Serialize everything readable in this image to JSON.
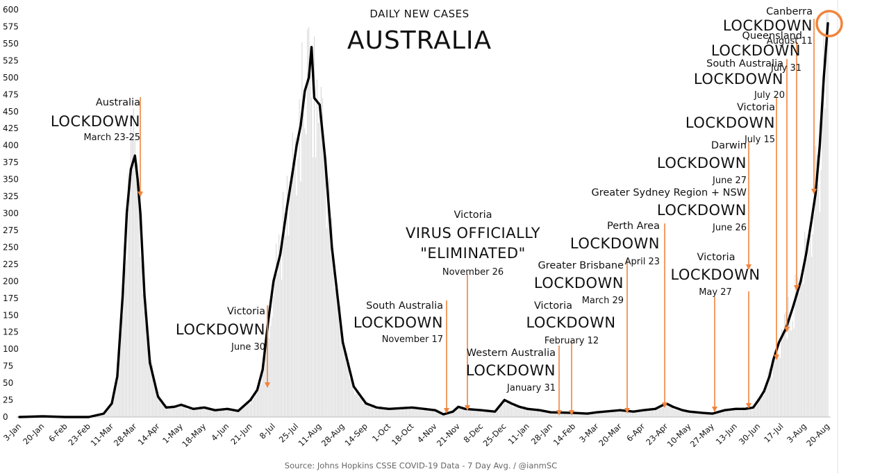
{
  "chart_data": {
    "type": "line",
    "title": "AUSTRALIA",
    "subtitle": "DAILY NEW CASES",
    "source": "Source: Johns Hopkins CSSE COVID-19 Data - 7 Day Avg. / @ianmSC",
    "ylim": [
      0,
      600
    ],
    "yticks": [
      0,
      25,
      50,
      75,
      100,
      125,
      150,
      175,
      200,
      225,
      250,
      275,
      300,
      325,
      350,
      375,
      400,
      425,
      450,
      475,
      500,
      525,
      550,
      575,
      600
    ],
    "x_start": "2020-01-03",
    "xticks": [
      "3-Jan",
      "20-Jan",
      "6-Feb",
      "23-Feb",
      "11-Mar",
      "28-Mar",
      "14-Apr",
      "1-May",
      "18-May",
      "4-Jun",
      "21-Jun",
      "8-Jul",
      "25-Jul",
      "11-Aug",
      "28-Aug",
      "14-Sep",
      "1-Oct",
      "18-Oct",
      "4-Nov",
      "21-Nov",
      "8-Dec",
      "25-Dec",
      "11-Jan",
      "28-Jan",
      "14-Feb",
      "3-Mar",
      "20-Mar",
      "6-Apr",
      "23-Apr",
      "10-May",
      "27-May",
      "13-Jun",
      "30-Jun",
      "17-Jul",
      "3-Aug",
      "20-Aug"
    ],
    "grid": false,
    "series": [
      {
        "name": "",
        "color": "#000000",
        "x": [
          "2020-01-03",
          "2020-01-20",
          "2020-02-06",
          "2020-02-23",
          "2020-03-05",
          "2020-03-11",
          "2020-03-15",
          "2020-03-19",
          "2020-03-22",
          "2020-03-25",
          "2020-03-28",
          "2020-03-30",
          "2020-04-01",
          "2020-04-04",
          "2020-04-08",
          "2020-04-14",
          "2020-04-20",
          "2020-04-26",
          "2020-05-01",
          "2020-05-10",
          "2020-05-18",
          "2020-05-26",
          "2020-06-04",
          "2020-06-12",
          "2020-06-21",
          "2020-06-26",
          "2020-06-30",
          "2020-07-04",
          "2020-07-08",
          "2020-07-13",
          "2020-07-18",
          "2020-07-22",
          "2020-07-25",
          "2020-07-28",
          "2020-07-31",
          "2020-08-03",
          "2020-08-05",
          "2020-08-07",
          "2020-08-11",
          "2020-08-15",
          "2020-08-20",
          "2020-08-28",
          "2020-09-05",
          "2020-09-14",
          "2020-09-22",
          "2020-10-01",
          "2020-10-18",
          "2020-11-04",
          "2020-11-10",
          "2020-11-17",
          "2020-11-21",
          "2020-11-26",
          "2020-12-08",
          "2020-12-18",
          "2020-12-25",
          "2020-12-30",
          "2021-01-05",
          "2021-01-11",
          "2021-01-20",
          "2021-01-28",
          "2021-02-14",
          "2021-02-24",
          "2021-03-03",
          "2021-03-20",
          "2021-03-30",
          "2021-04-06",
          "2021-04-15",
          "2021-04-23",
          "2021-04-28",
          "2021-05-05",
          "2021-05-10",
          "2021-05-20",
          "2021-05-27",
          "2021-06-05",
          "2021-06-13",
          "2021-06-20",
          "2021-06-26",
          "2021-06-30",
          "2021-07-04",
          "2021-07-08",
          "2021-07-11",
          "2021-07-15",
          "2021-07-20",
          "2021-07-25",
          "2021-07-31",
          "2021-08-04",
          "2021-08-08",
          "2021-08-11",
          "2021-08-14",
          "2021-08-17",
          "2021-08-20"
        ],
        "values": [
          0,
          1,
          0,
          0,
          5,
          20,
          60,
          180,
          300,
          365,
          385,
          350,
          300,
          180,
          80,
          30,
          14,
          15,
          18,
          12,
          14,
          10,
          12,
          9,
          25,
          40,
          70,
          140,
          200,
          240,
          310,
          360,
          400,
          430,
          480,
          500,
          545,
          470,
          460,
          380,
          250,
          110,
          45,
          20,
          14,
          12,
          14,
          10,
          4,
          8,
          15,
          12,
          10,
          8,
          25,
          20,
          15,
          12,
          10,
          7,
          6,
          5,
          7,
          10,
          8,
          10,
          12,
          20,
          15,
          10,
          8,
          6,
          5,
          10,
          12,
          12,
          14,
          25,
          38,
          60,
          85,
          110,
          130,
          160,
          200,
          240,
          290,
          330,
          400,
          500,
          580
        ]
      }
    ],
    "annotations": [
      {
        "place": "Australia",
        "event": "LOCKDOWN",
        "date": "March 23-25"
      },
      {
        "place": "Victoria",
        "event": "LOCKDOWN",
        "date": "June 30"
      },
      {
        "place": "Victoria",
        "event": "VIRUS OFFICIALLY",
        "event2": "\"ELIMINATED\"",
        "date": "November 26"
      },
      {
        "place": "South Australia",
        "event": "LOCKDOWN",
        "date": "November 17"
      },
      {
        "place": "Western Australia",
        "event": "LOCKDOWN",
        "date": "January 31"
      },
      {
        "place": "Victoria",
        "event": "LOCKDOWN",
        "date": "February 12"
      },
      {
        "place": "Greater Brisbane",
        "event": "LOCKDOWN",
        "date": "March 29"
      },
      {
        "place": "Perth Area",
        "event": "LOCKDOWN",
        "date": "April 23"
      },
      {
        "place": "Victoria",
        "event": "LOCKDOWN",
        "date": "May 27"
      },
      {
        "place": "Greater Sydney Region + NSW",
        "event": "LOCKDOWN",
        "date": "June 26"
      },
      {
        "place": "Darwin",
        "event": "LOCKDOWN",
        "date": "June 27"
      },
      {
        "place": "Victoria",
        "event": "LOCKDOWN",
        "date": "July 15"
      },
      {
        "place": "South Australia",
        "event": "LOCKDOWN",
        "date": "July 20"
      },
      {
        "place": "Queensland",
        "event": "LOCKDOWN",
        "date": "July 31"
      },
      {
        "place": "Canberra",
        "event": "LOCKDOWN",
        "date": "August 11"
      }
    ],
    "colors": {
      "line": "#000000",
      "arrow": "#f0843c",
      "circle": "#f0843c",
      "bars": "#d4d4d4"
    }
  }
}
